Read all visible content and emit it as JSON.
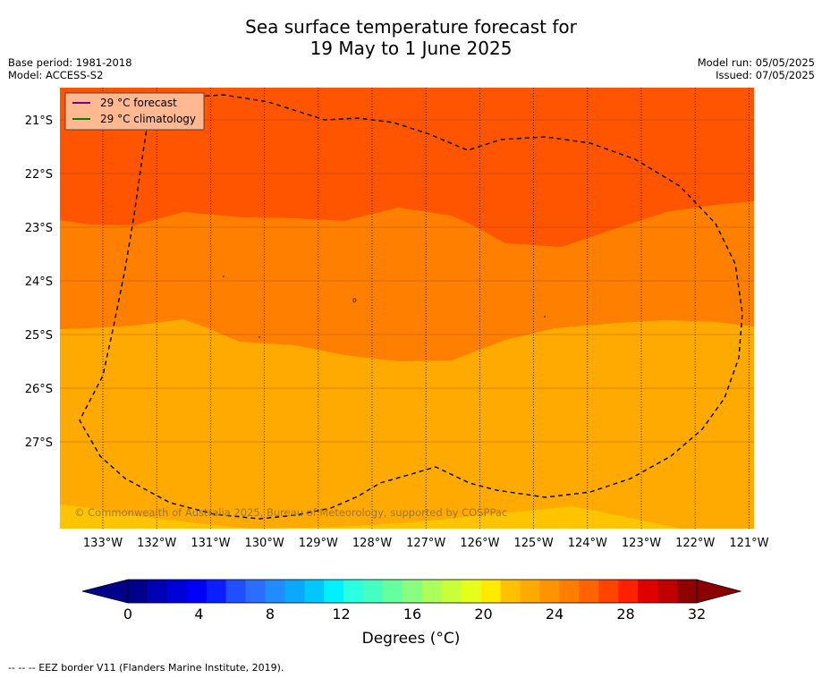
{
  "title": {
    "line1": "Sea surface temperature forecast for",
    "line2": "19 May to 1 June 2025"
  },
  "meta": {
    "base_period": "Base period: 1981-2018",
    "model": "Model: ACCESS-S2",
    "model_run": "Model run: 05/05/2025",
    "issued": "Issued: 07/05/2025"
  },
  "legend": {
    "forecast": "29 °C  forecast",
    "climatology": "29 °C  climatology",
    "forecast_color": "#800080",
    "climatology_color": "#008000"
  },
  "axes": {
    "lat_labels": [
      "21°S",
      "22°S",
      "23°S",
      "24°S",
      "25°S",
      "26°S",
      "27°S"
    ],
    "lon_labels": [
      "133°W",
      "132°W",
      "131°W",
      "130°W",
      "129°W",
      "128°W",
      "127°W",
      "126°W",
      "125°W",
      "124°W",
      "123°W",
      "122°W",
      "121°W"
    ]
  },
  "copyright": "© Commonwealth of Australia 2025, Bureau of Meteorology, supported by COSPPac",
  "colorbar": {
    "ticks": [
      "0",
      "4",
      "8",
      "12",
      "16",
      "20",
      "24",
      "28",
      "32"
    ],
    "title": "Degrees (°C)",
    "colors": [
      "#00008b",
      "#0000b4",
      "#0000d8",
      "#0000fa",
      "#0a1eff",
      "#1f4fff",
      "#2b6dff",
      "#1f8cff",
      "#0aa8ff",
      "#00c8ff",
      "#00f0ff",
      "#2affe0",
      "#44ffc0",
      "#66ffa0",
      "#88ff80",
      "#aaff5a",
      "#c8ff3a",
      "#e6ff1a",
      "#ffea00",
      "#ffc000",
      "#ffaa00",
      "#ff9400",
      "#ff7e00",
      "#ff6400",
      "#ff4400",
      "#ff2000",
      "#e00000",
      "#c00000",
      "#900000"
    ],
    "min_arrow_color": "#00008b",
    "max_arrow_color": "#8b0000"
  },
  "field_colors": {
    "above_28": "#ff5500",
    "27_28": "#ff8000",
    "26_27": "#ffaa00",
    "25_26": "#ffc400"
  },
  "footnote": "--  --  -- EEZ border V11 (Flanders Marine Institute, 2019)."
}
